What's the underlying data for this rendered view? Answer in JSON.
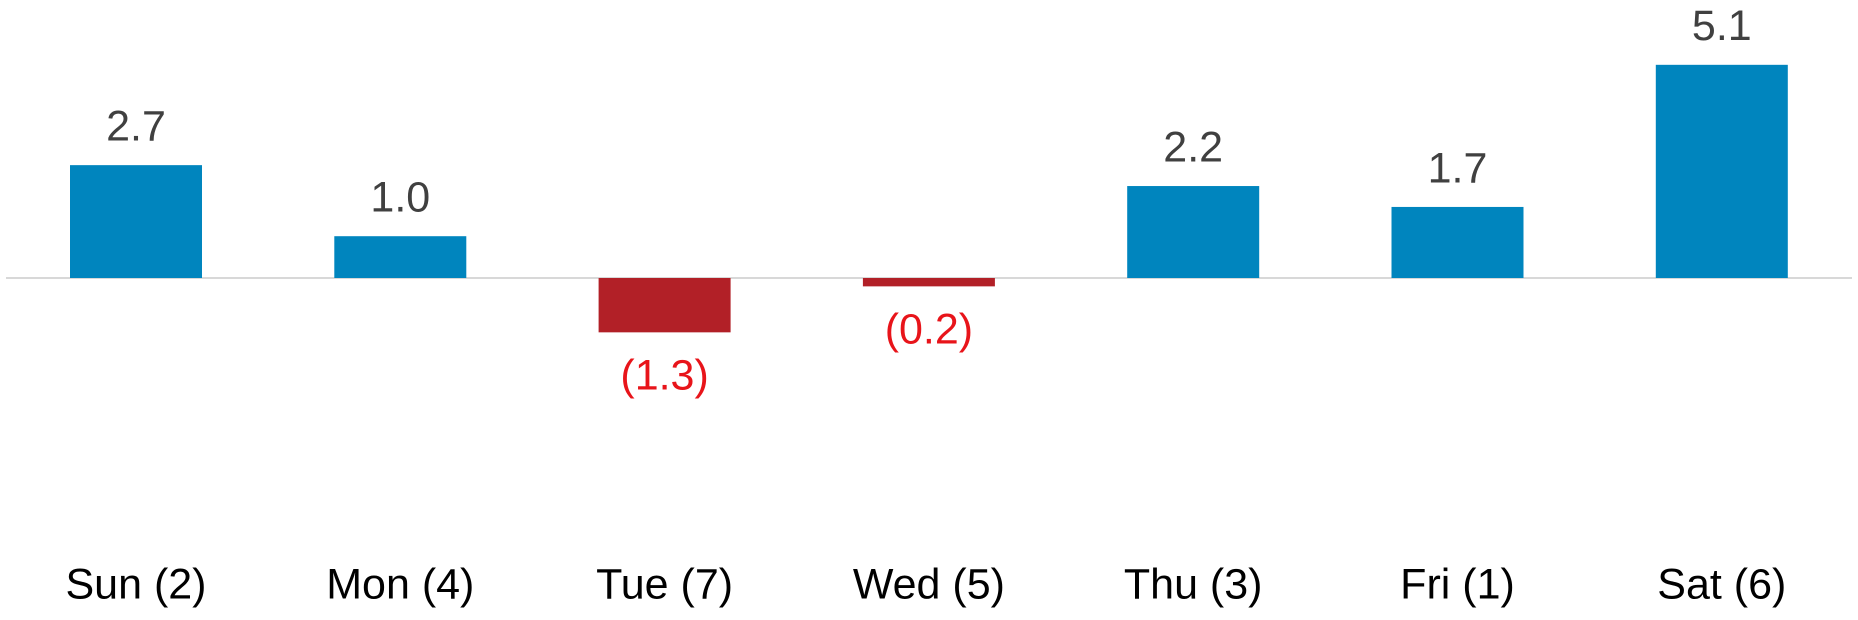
{
  "chart_data": {
    "type": "bar",
    "categories": [
      "Sun (2)",
      "Mon (4)",
      "Tue (7)",
      "Wed (5)",
      "Thu (3)",
      "Fri (1)",
      "Sat (6)"
    ],
    "values": [
      2.7,
      1.0,
      -1.3,
      -0.2,
      2.2,
      1.7,
      5.1
    ],
    "value_labels": [
      "2.7",
      "1.0",
      "(1.3)",
      "(0.2)",
      "2.2",
      "1.7",
      "5.1"
    ],
    "color": "#0085be",
    "negative_color": "#b22027",
    "label_color": "#404040",
    "negative_label_color": "#e8141a",
    "category_color": "#000000"
  }
}
